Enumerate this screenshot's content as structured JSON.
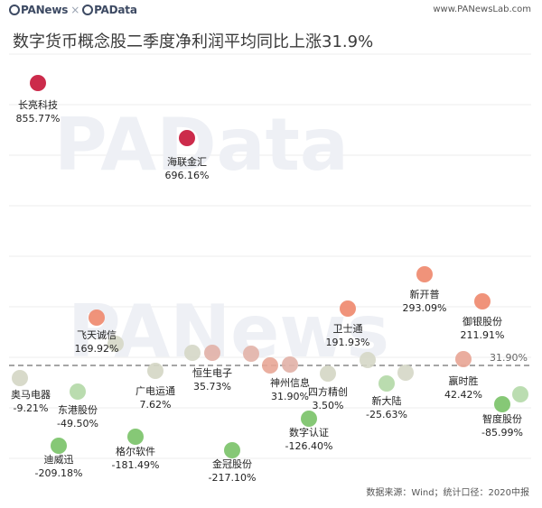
{
  "header": {
    "brand_left": "PANews",
    "brand_sep": "×",
    "brand_right": "PAData",
    "site": "www.PANewsLab.com"
  },
  "title": "数字货币概念股二季度净利润平均同比上涨31.9%",
  "source_note": "数据来源：Wind；统计口径：2020中报",
  "watermark": [
    "PAData",
    "PANews"
  ],
  "colors": {
    "positive_high": "#c8193c",
    "negative": "#7cc36a",
    "neutral": "#d3d7c9",
    "avg_line": "#888888"
  },
  "chart_data": {
    "type": "scatter",
    "title": "数字货币概念股二季度净利润平均同比上涨31.9%",
    "unit": "%",
    "average": {
      "value": 31.9,
      "label": "31.90%"
    },
    "points": [
      {
        "name": "长亮科技",
        "value": 855.77,
        "label": "855.77%"
      },
      {
        "name": "海联金汇",
        "value": 696.16,
        "label": "696.16%"
      },
      {
        "name": "新开普",
        "value": 293.09,
        "label": "293.09%"
      },
      {
        "name": "御银股份",
        "value": 211.91,
        "label": "211.91%"
      },
      {
        "name": "卫士通",
        "value": 191.93,
        "label": "191.93%"
      },
      {
        "name": "飞天诚信",
        "value": 169.92,
        "label": "169.92%"
      },
      {
        "name": "嬴时胜",
        "value": 42.42,
        "label": "42.42%"
      },
      {
        "name": "恒生电子",
        "value": 35.73,
        "label": "35.73%"
      },
      {
        "name": "神州信息",
        "value": 31.9,
        "label": "31.90%"
      },
      {
        "name": "广电运通",
        "value": 7.62,
        "label": "7.62%"
      },
      {
        "name": "四方精创",
        "value": 3.5,
        "label": "3.50%"
      },
      {
        "name": "奥马电器",
        "value": -9.21,
        "label": "-9.21%"
      },
      {
        "name": "新大陆",
        "value": -25.63,
        "label": "-25.63%"
      },
      {
        "name": "东港股份",
        "value": -49.5,
        "label": "-49.50%"
      },
      {
        "name": "智度股份",
        "value": -85.99,
        "label": "-85.99%"
      },
      {
        "name": "数字认证",
        "value": -126.4,
        "label": "-126.40%"
      },
      {
        "name": "格尔软件",
        "value": -181.49,
        "label": "-181.49%"
      },
      {
        "name": "迪威迅",
        "value": -209.18,
        "label": "-209.18%"
      },
      {
        "name": "金冠股份",
        "value": -217.1,
        "label": "-217.10%"
      }
    ],
    "unlabeled_points": [
      12.0,
      30.0,
      41.0,
      20.0,
      29.0,
      18.0,
      -64.0
    ],
    "grid": true,
    "legend": "none"
  }
}
